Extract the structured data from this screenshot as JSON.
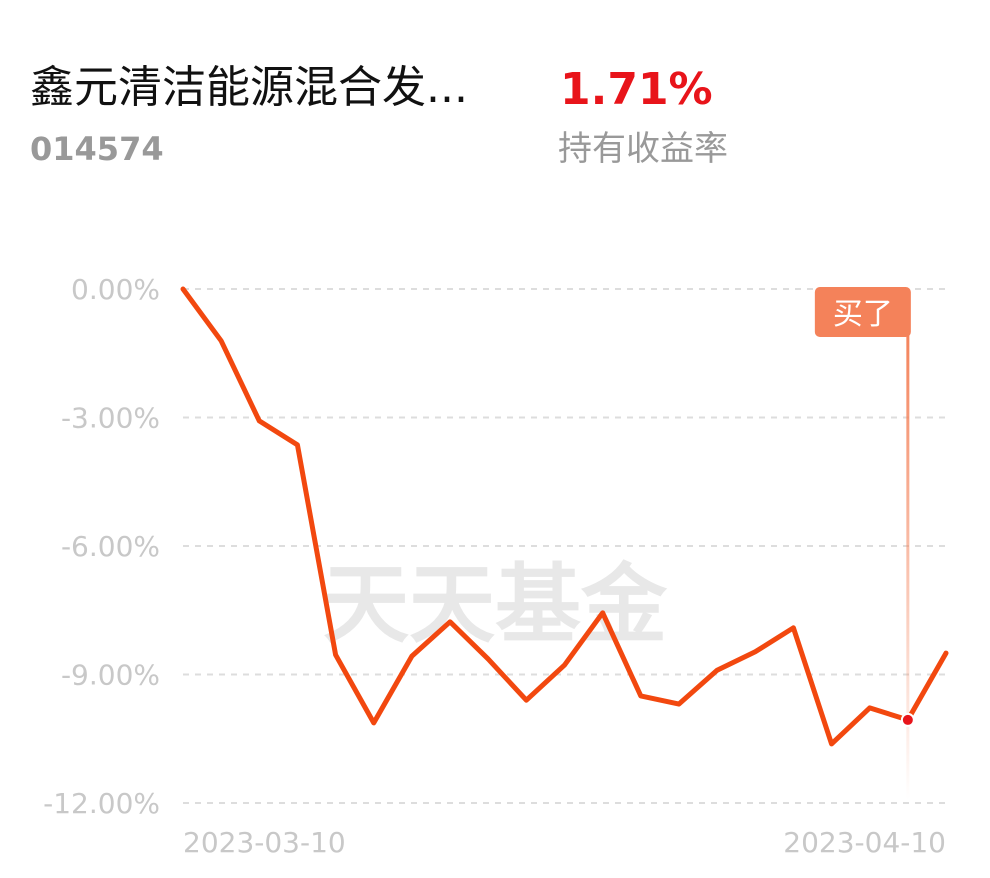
{
  "header": {
    "title": "鑫元清洁能源混合发...",
    "code": "014574",
    "return_value": "1.71%",
    "return_label": "持有收益率"
  },
  "watermark": "天天基金",
  "chart_data": {
    "type": "line",
    "categories": [
      "2023-03-10",
      null,
      null,
      null,
      null,
      null,
      null,
      null,
      null,
      null,
      null,
      null,
      null,
      null,
      null,
      null,
      null,
      null,
      null,
      null,
      "2023-04-10"
    ],
    "series": [
      {
        "name": null,
        "color": "#f2480f",
        "values": [
          0,
          -1.21,
          -3.08,
          -3.64,
          -8.54,
          -10.13,
          -8.57,
          -7.77,
          -8.64,
          -9.6,
          -8.78,
          -7.56,
          -9.5,
          -9.69,
          -8.9,
          -8.47,
          -7.91,
          -10.62,
          -9.78,
          -10.06,
          -8.5
        ]
      }
    ],
    "ylim": [
      -12,
      0
    ],
    "yticks": [
      {
        "value": 0,
        "label": "0.00%"
      },
      {
        "value": -3,
        "label": "-3.00%"
      },
      {
        "value": -6,
        "label": "-6.00%"
      },
      {
        "value": -9,
        "label": "-9.00%"
      },
      {
        "value": -12,
        "label": "-12.00%"
      }
    ],
    "grid": true,
    "annotation": {
      "index": 19,
      "text": "买了"
    }
  }
}
